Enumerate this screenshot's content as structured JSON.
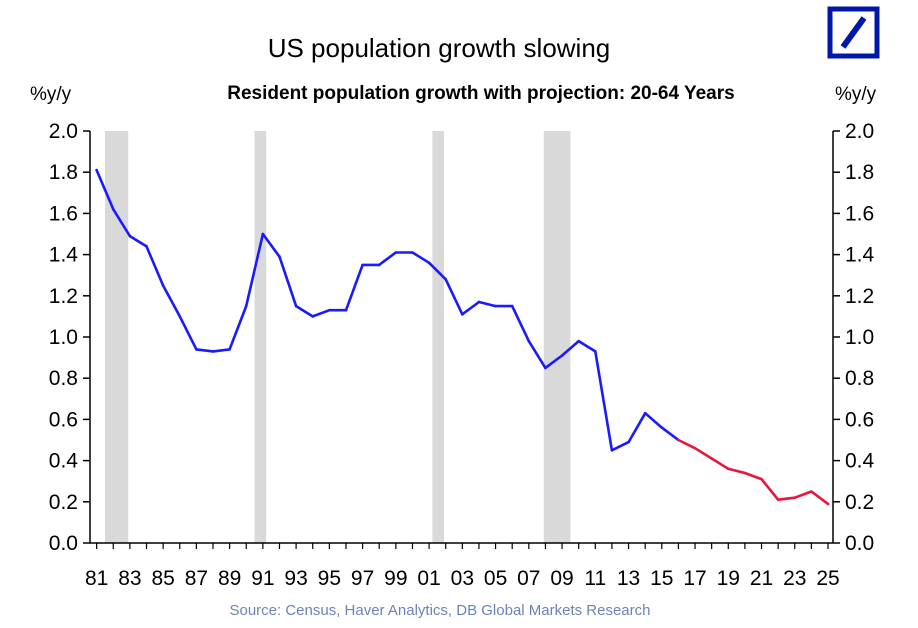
{
  "chart_title": "US population growth slowing",
  "source_note": "Source: Census, Haver Analytics, DB Global Markets Research",
  "logo": {
    "name": "deutsche-bank-logo",
    "color": "#0018a8"
  },
  "chart_data": {
    "type": "line",
    "title": "Resident population growth with projection: 20-64 Years",
    "ylabel_left": "%y/y",
    "ylabel_right": "%y/y",
    "xlabel": "",
    "ylim": [
      0,
      2
    ],
    "x_tick_labels": [
      "81",
      "83",
      "85",
      "87",
      "89",
      "91",
      "93",
      "95",
      "97",
      "99",
      "01",
      "03",
      "05",
      "07",
      "09",
      "11",
      "13",
      "15",
      "17",
      "19",
      "21",
      "23",
      "25"
    ],
    "y_tick_labels": [
      "0.0",
      "0.2",
      "0.4",
      "0.6",
      "0.8",
      "1.0",
      "1.2",
      "1.4",
      "1.6",
      "1.8",
      "2.0"
    ],
    "grid": false,
    "legend": "none",
    "recession_bands": [
      {
        "from": 1981.5,
        "to": 1982.9
      },
      {
        "from": 1990.5,
        "to": 1991.2
      },
      {
        "from": 2001.2,
        "to": 2001.9
      },
      {
        "from": 2007.9,
        "to": 2009.5
      }
    ],
    "recession_color": "#d9d9d9",
    "series": [
      {
        "kind": "historical",
        "color": "#1a1aff",
        "x": [
          1981,
          1982,
          1983,
          1984,
          1985,
          1986,
          1987,
          1988,
          1989,
          1990,
          1991,
          1992,
          1993,
          1994,
          1995,
          1996,
          1997,
          1998,
          1999,
          2000,
          2001,
          2002,
          2003,
          2004,
          2005,
          2006,
          2007,
          2008,
          2009,
          2010,
          2011,
          2012,
          2013,
          2014,
          2015,
          2016
        ],
        "values": [
          1.81,
          1.62,
          1.49,
          1.44,
          1.25,
          1.1,
          0.94,
          0.93,
          0.94,
          1.15,
          1.5,
          1.39,
          1.15,
          1.1,
          1.13,
          1.13,
          1.35,
          1.35,
          1.41,
          1.41,
          1.36,
          1.28,
          1.11,
          1.17,
          1.15,
          1.15,
          0.98,
          0.85,
          0.91,
          0.98,
          0.93,
          0.45,
          0.49,
          0.63,
          0.56,
          0.5
        ]
      },
      {
        "kind": "projection",
        "color": "#e8173a",
        "x": [
          2016,
          2017,
          2018,
          2019,
          2020,
          2021,
          2022,
          2023,
          2024,
          2025
        ],
        "values": [
          0.5,
          0.46,
          0.41,
          0.36,
          0.34,
          0.31,
          0.21,
          0.22,
          0.25,
          0.19
        ]
      }
    ]
  }
}
